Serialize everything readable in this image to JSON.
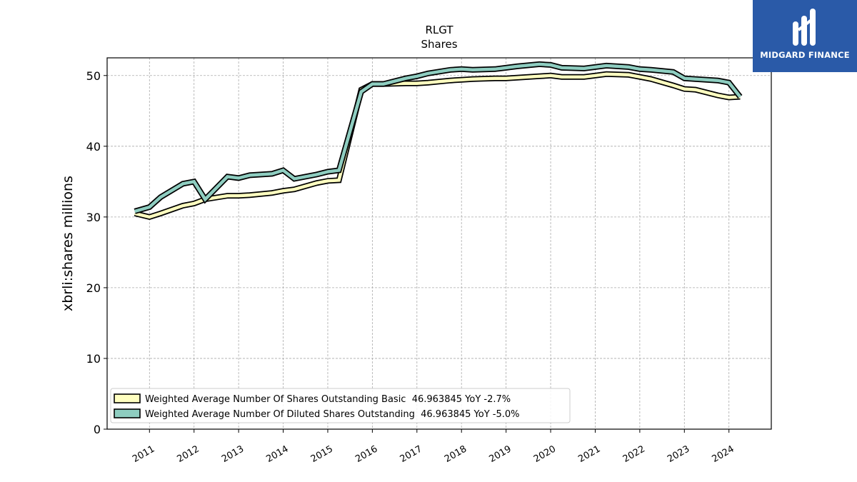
{
  "chart_data": {
    "type": "line",
    "title": "RLGT",
    "subtitle": "Shares",
    "xlabel": "",
    "ylabel": "xbrli:shares millions",
    "ylim": [
      0,
      52.5
    ],
    "xlim": [
      2010.05,
      2024.95
    ],
    "yticks": [
      0,
      10,
      20,
      30,
      40,
      50
    ],
    "xtick_labels": [
      "2011",
      "2012",
      "2013",
      "2014",
      "2015",
      "2016",
      "2017",
      "2018",
      "2019",
      "2020",
      "2021",
      "2022",
      "2023",
      "2024"
    ],
    "grid": true,
    "legend_position": "lower-left",
    "series": [
      {
        "name": "Weighted Average Number Of Shares Outstanding Basic  46.963845 YoY -2.7%",
        "color": "#ffffc0",
        "x": [
          2010.67,
          2011.0,
          2011.25,
          2011.75,
          2012.0,
          2012.25,
          2012.75,
          2013.0,
          2013.25,
          2013.75,
          2014.0,
          2014.25,
          2014.75,
          2015.0,
          2015.25,
          2015.75,
          2016.0,
          2016.25,
          2016.75,
          2017.0,
          2017.25,
          2017.75,
          2018.0,
          2018.25,
          2018.75,
          2019.0,
          2019.25,
          2019.75,
          2020.0,
          2020.25,
          2020.75,
          2021.0,
          2021.25,
          2021.75,
          2022.0,
          2022.25,
          2022.75,
          2023.0,
          2023.25,
          2023.75,
          2024.0,
          2024.25
        ],
        "y": [
          30.5,
          30.0,
          30.5,
          31.6,
          31.9,
          32.5,
          33.0,
          33.0,
          33.1,
          33.4,
          33.7,
          33.9,
          34.8,
          35.1,
          35.2,
          48.0,
          48.8,
          48.8,
          48.9,
          48.9,
          49.0,
          49.3,
          49.4,
          49.5,
          49.6,
          49.6,
          49.7,
          49.9,
          50.0,
          49.8,
          49.8,
          50.0,
          50.2,
          50.1,
          49.8,
          49.5,
          48.6,
          48.1,
          48.0,
          47.2,
          46.9,
          47.0
        ]
      },
      {
        "name": "Weighted Average Number Of Diluted Shares Outstanding  46.963845 YoY -5.0%",
        "color": "#8ecdc0",
        "x": [
          2010.67,
          2011.0,
          2011.25,
          2011.75,
          2012.0,
          2012.25,
          2012.75,
          2013.0,
          2013.25,
          2013.75,
          2014.0,
          2014.25,
          2014.75,
          2015.0,
          2015.25,
          2015.75,
          2016.0,
          2016.25,
          2016.75,
          2017.0,
          2017.25,
          2017.75,
          2018.0,
          2018.25,
          2018.75,
          2019.0,
          2019.25,
          2019.75,
          2020.0,
          2020.25,
          2020.75,
          2021.0,
          2021.25,
          2021.75,
          2022.0,
          2022.25,
          2022.75,
          2023.0,
          2023.25,
          2023.75,
          2024.0,
          2024.25
        ],
        "y": [
          30.8,
          31.4,
          32.8,
          34.7,
          35.0,
          32.5,
          35.7,
          35.5,
          35.9,
          36.1,
          36.6,
          35.4,
          36.0,
          36.4,
          36.6,
          47.7,
          48.8,
          48.8,
          49.6,
          49.9,
          50.3,
          50.8,
          50.9,
          50.8,
          50.9,
          51.1,
          51.3,
          51.6,
          51.5,
          51.1,
          51.0,
          51.2,
          51.4,
          51.2,
          50.9,
          50.8,
          50.5,
          49.6,
          49.5,
          49.3,
          49.0,
          47.0
        ]
      }
    ]
  },
  "logo": {
    "name": "MIDGARD FINANCE",
    "background": "#2a5aa8"
  }
}
